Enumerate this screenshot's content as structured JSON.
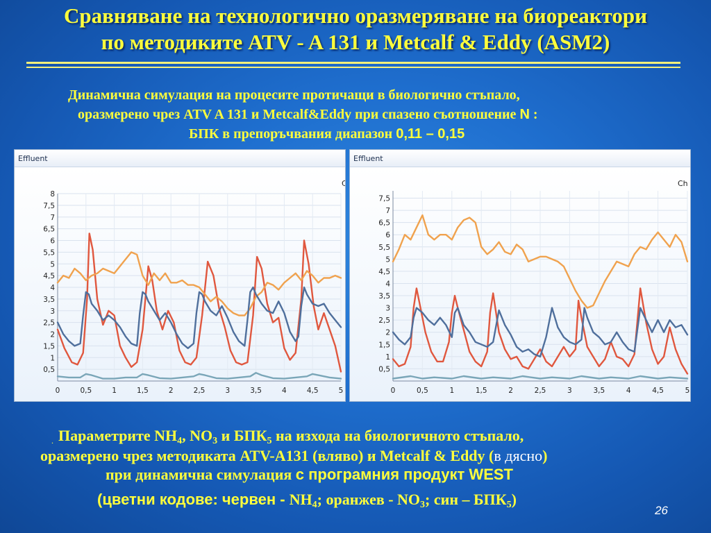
{
  "slide": {
    "title_line1": "Сравняване на технологично оразмеряване на биореактори",
    "title_line2": "по методиките ATV - A 131 и Metcalf & Eddy (ASM2)",
    "subtitle_line1": "Динамична симулация на процесите протичащи в биологично стъпало,",
    "subtitle_line2_pre": "оразмерено чрез ATV A 131 и Metcalf&Eddy при спазено съотношение ",
    "subtitle_line2_N": "N",
    "subtitle_line2_post": " :",
    "subtitle_line3_pre": "БПК в препоръчвания диапазон ",
    "subtitle_line3_range": "0,11 – 0,15",
    "page_number": "26"
  },
  "panels": {
    "left_header": "Effluent",
    "right_header": "Effluent",
    "right_corner_label": "Ch",
    "left_corner_label": "C"
  },
  "bottom": {
    "bullet": ".",
    "l1_a": "Параметрите NH",
    "l1_sub1": "4",
    "l1_b": ", NO",
    "l1_sub2": "3",
    "l1_c": " и БПК",
    "l1_sub3": "5",
    "l1_d": " на изхода на биологичното стъпало,",
    "l2_a": "оразмерено чрез методиката ATV-A131 (вляво) и Metcalf & Eddy (",
    "l2_b": "в дясно",
    "l2_c": ")",
    "l3_a": "при динамична симулация ",
    "l3_b": "с програмния продукт WEST",
    "l4_a": "(цветни кодове: червен - ",
    "l4_b": "NH",
    "l4_sub1": "4",
    "l4_c": "; оранжев - NO",
    "l4_sub2": "3",
    "l4_d": "; син – БПК",
    "l4_sub3": "5",
    "l4_e": ")"
  },
  "colors": {
    "red": "#e0573e",
    "orange": "#f0a24e",
    "blue": "#4f6f9c",
    "teal": "#7aa6b8",
    "title": "#ffff3c"
  },
  "chart_data": [
    {
      "type": "line",
      "title": "Effluent",
      "xlabel": "",
      "ylabel": "",
      "xlim": [
        0,
        5
      ],
      "ylim": [
        0,
        8
      ],
      "x_ticks": [
        "0",
        "0,5",
        "1",
        "1,5",
        "2",
        "2,5",
        "3",
        "3,5",
        "4",
        "4,5",
        "5"
      ],
      "y_ticks": [
        "0,5",
        "1",
        "1,5",
        "2",
        "2,5",
        "3",
        "3,5",
        "4",
        "4,5",
        "5",
        "5,5",
        "6",
        "6,5",
        "7",
        "7,5",
        "8"
      ],
      "grid": true,
      "series": [
        {
          "color": "red",
          "x": [
            0,
            0.12,
            0.25,
            0.35,
            0.45,
            0.52,
            0.56,
            0.62,
            0.7,
            0.8,
            0.9,
            1.0,
            1.1,
            1.2,
            1.3,
            1.4,
            1.5,
            1.6,
            1.67,
            1.75,
            1.85,
            1.95,
            2.05,
            2.15,
            2.25,
            2.35,
            2.45,
            2.55,
            2.65,
            2.75,
            2.85,
            2.95,
            3.05,
            3.15,
            3.25,
            3.35,
            3.45,
            3.52,
            3.6,
            3.7,
            3.8,
            3.9,
            4.0,
            4.1,
            4.2,
            4.3,
            4.35,
            4.43,
            4.52,
            4.6,
            4.7,
            4.8,
            4.9,
            5.0
          ],
          "y": [
            2.2,
            1.4,
            0.8,
            0.7,
            1.2,
            3.5,
            6.3,
            5.6,
            3.5,
            2.4,
            3.0,
            2.8,
            1.5,
            1.0,
            0.6,
            0.8,
            2.2,
            4.9,
            4.3,
            3.0,
            2.2,
            3.0,
            2.5,
            1.3,
            0.8,
            0.7,
            1.0,
            2.8,
            5.1,
            4.5,
            3.1,
            2.3,
            1.3,
            0.8,
            0.7,
            0.8,
            2.8,
            5.3,
            4.8,
            3.3,
            2.5,
            2.7,
            1.4,
            0.9,
            1.2,
            3.5,
            6.0,
            5.0,
            3.2,
            2.2,
            2.9,
            2.2,
            1.5,
            0.4
          ]
        },
        {
          "color": "orange",
          "x": [
            0,
            0.1,
            0.2,
            0.3,
            0.4,
            0.5,
            0.6,
            0.7,
            0.8,
            0.9,
            1.0,
            1.1,
            1.2,
            1.3,
            1.4,
            1.5,
            1.6,
            1.7,
            1.8,
            1.9,
            2.0,
            2.1,
            2.2,
            2.3,
            2.4,
            2.5,
            2.6,
            2.7,
            2.8,
            2.9,
            3.0,
            3.1,
            3.2,
            3.3,
            3.4,
            3.5,
            3.6,
            3.7,
            3.8,
            3.9,
            4.0,
            4.1,
            4.2,
            4.3,
            4.4,
            4.5,
            4.6,
            4.7,
            4.8,
            4.9,
            5.0
          ],
          "y": [
            4.2,
            4.5,
            4.4,
            4.8,
            4.6,
            4.3,
            4.5,
            4.6,
            4.8,
            4.7,
            4.6,
            4.9,
            5.2,
            5.5,
            5.4,
            4.5,
            4.1,
            4.6,
            4.3,
            4.6,
            4.2,
            4.2,
            4.3,
            4.1,
            4.1,
            4.0,
            3.7,
            3.4,
            3.6,
            3.4,
            3.1,
            2.9,
            2.8,
            2.8,
            3.1,
            3.6,
            3.8,
            4.2,
            4.1,
            3.9,
            4.2,
            4.4,
            4.6,
            4.3,
            4.7,
            4.5,
            4.2,
            4.4,
            4.4,
            4.5,
            4.4
          ]
        },
        {
          "color": "blue",
          "x": [
            0,
            0.1,
            0.2,
            0.3,
            0.4,
            0.45,
            0.5,
            0.55,
            0.6,
            0.7,
            0.8,
            0.9,
            1.0,
            1.1,
            1.2,
            1.3,
            1.4,
            1.45,
            1.5,
            1.55,
            1.6,
            1.7,
            1.8,
            1.9,
            2.0,
            2.1,
            2.2,
            2.3,
            2.4,
            2.45,
            2.5,
            2.55,
            2.6,
            2.7,
            2.8,
            2.9,
            3.0,
            3.1,
            3.2,
            3.3,
            3.35,
            3.4,
            3.45,
            3.5,
            3.6,
            3.7,
            3.8,
            3.9,
            4.0,
            4.1,
            4.2,
            4.25,
            4.3,
            4.35,
            4.4,
            4.5,
            4.6,
            4.7,
            4.8,
            4.9,
            5.0
          ],
          "y": [
            2.5,
            2.0,
            1.7,
            1.5,
            1.6,
            2.8,
            3.8,
            3.7,
            3.3,
            3.0,
            2.6,
            2.8,
            2.6,
            2.3,
            1.9,
            1.6,
            1.5,
            2.9,
            3.8,
            3.7,
            3.4,
            3.0,
            2.6,
            2.9,
            2.5,
            2.0,
            1.6,
            1.4,
            1.6,
            2.9,
            3.8,
            3.7,
            3.4,
            3.0,
            2.8,
            3.2,
            2.7,
            2.1,
            1.7,
            1.5,
            2.6,
            3.8,
            4.0,
            3.7,
            3.3,
            3.0,
            2.9,
            3.4,
            2.9,
            2.1,
            1.7,
            1.9,
            3.2,
            4.0,
            3.7,
            3.3,
            3.2,
            3.3,
            2.9,
            2.6,
            2.3
          ]
        },
        {
          "color": "teal",
          "x": [
            0,
            0.2,
            0.4,
            0.5,
            0.6,
            0.8,
            1.0,
            1.2,
            1.4,
            1.5,
            1.6,
            1.8,
            2.0,
            2.2,
            2.4,
            2.5,
            2.6,
            2.8,
            3.0,
            3.2,
            3.4,
            3.5,
            3.6,
            3.8,
            4.0,
            4.2,
            4.4,
            4.5,
            4.6,
            4.8,
            5.0
          ],
          "y": [
            0.2,
            0.15,
            0.15,
            0.3,
            0.25,
            0.1,
            0.1,
            0.15,
            0.15,
            0.3,
            0.25,
            0.12,
            0.1,
            0.15,
            0.2,
            0.3,
            0.25,
            0.12,
            0.1,
            0.15,
            0.2,
            0.35,
            0.25,
            0.12,
            0.1,
            0.15,
            0.2,
            0.3,
            0.25,
            0.15,
            0.1
          ]
        }
      ]
    },
    {
      "type": "line",
      "title": "Effluent",
      "xlabel": "",
      "ylabel": "",
      "xlim": [
        0,
        5
      ],
      "ylim": [
        0,
        7.8
      ],
      "x_ticks": [
        "0",
        "0,5",
        "1",
        "1,5",
        "2",
        "2,5",
        "3",
        "3,5",
        "4",
        "4,5",
        "5"
      ],
      "y_ticks": [
        "0,5",
        "1",
        "1,5",
        "2",
        "2,5",
        "3",
        "3,5",
        "4",
        "4,5",
        "5",
        "5,5",
        "6",
        "6,5",
        "7",
        "7,5"
      ],
      "grid": true,
      "series": [
        {
          "color": "red",
          "x": [
            0,
            0.1,
            0.2,
            0.3,
            0.35,
            0.4,
            0.45,
            0.55,
            0.65,
            0.75,
            0.85,
            0.95,
            1.0,
            1.05,
            1.1,
            1.2,
            1.3,
            1.4,
            1.5,
            1.6,
            1.65,
            1.7,
            1.8,
            1.9,
            2.0,
            2.1,
            2.2,
            2.3,
            2.4,
            2.5,
            2.6,
            2.7,
            2.8,
            2.9,
            3.0,
            3.1,
            3.15,
            3.2,
            3.3,
            3.4,
            3.5,
            3.6,
            3.7,
            3.8,
            3.9,
            4.0,
            4.1,
            4.2,
            4.3,
            4.4,
            4.5,
            4.6,
            4.7,
            4.8,
            4.9,
            5.0
          ],
          "y": [
            0.9,
            0.6,
            0.7,
            1.4,
            3.0,
            3.8,
            3.2,
            2.0,
            1.2,
            0.8,
            0.8,
            1.6,
            2.8,
            3.5,
            3.0,
            2.1,
            1.2,
            0.8,
            0.6,
            1.2,
            2.8,
            3.6,
            2.0,
            1.3,
            0.9,
            1.0,
            0.6,
            0.5,
            0.9,
            1.3,
            0.8,
            0.6,
            1.0,
            1.4,
            1.0,
            1.3,
            3.3,
            2.6,
            1.4,
            1.0,
            0.6,
            0.9,
            1.6,
            1.0,
            0.9,
            0.6,
            1.1,
            3.8,
            2.4,
            1.3,
            0.7,
            1.0,
            2.2,
            1.3,
            0.7,
            0.3
          ]
        },
        {
          "color": "orange",
          "x": [
            0,
            0.1,
            0.2,
            0.3,
            0.4,
            0.5,
            0.6,
            0.7,
            0.8,
            0.9,
            1.0,
            1.1,
            1.2,
            1.3,
            1.4,
            1.5,
            1.6,
            1.7,
            1.8,
            1.9,
            2.0,
            2.1,
            2.2,
            2.3,
            2.4,
            2.5,
            2.6,
            2.7,
            2.8,
            2.9,
            3.0,
            3.1,
            3.2,
            3.3,
            3.4,
            3.5,
            3.6,
            3.7,
            3.8,
            3.9,
            4.0,
            4.1,
            4.2,
            4.3,
            4.4,
            4.5,
            4.6,
            4.7,
            4.8,
            4.9,
            5.0
          ],
          "y": [
            4.9,
            5.4,
            6.0,
            5.8,
            6.3,
            6.8,
            6.0,
            5.8,
            6.0,
            6.0,
            5.8,
            6.3,
            6.6,
            6.7,
            6.5,
            5.5,
            5.2,
            5.4,
            5.7,
            5.3,
            5.2,
            5.6,
            5.4,
            4.9,
            5.0,
            5.1,
            5.1,
            5.0,
            4.9,
            4.7,
            4.2,
            3.7,
            3.3,
            3.0,
            3.1,
            3.6,
            4.1,
            4.5,
            4.9,
            4.8,
            4.7,
            5.2,
            5.5,
            5.4,
            5.8,
            6.1,
            5.8,
            5.5,
            6.0,
            5.7,
            4.9
          ]
        },
        {
          "color": "blue",
          "x": [
            0,
            0.1,
            0.2,
            0.3,
            0.35,
            0.4,
            0.5,
            0.6,
            0.7,
            0.8,
            0.9,
            1.0,
            1.05,
            1.1,
            1.2,
            1.3,
            1.4,
            1.5,
            1.6,
            1.7,
            1.8,
            1.9,
            2.0,
            2.1,
            2.2,
            2.3,
            2.4,
            2.5,
            2.6,
            2.7,
            2.75,
            2.8,
            2.9,
            3.0,
            3.1,
            3.2,
            3.25,
            3.3,
            3.4,
            3.5,
            3.6,
            3.7,
            3.8,
            3.9,
            4.0,
            4.1,
            4.2,
            4.3,
            4.4,
            4.5,
            4.6,
            4.7,
            4.8,
            4.9,
            5.0
          ],
          "y": [
            2.0,
            1.7,
            1.5,
            1.8,
            2.6,
            3.0,
            2.8,
            2.5,
            2.3,
            2.6,
            2.3,
            1.8,
            2.8,
            3.0,
            2.3,
            2.0,
            1.6,
            1.5,
            1.4,
            1.6,
            2.9,
            2.3,
            1.9,
            1.4,
            1.2,
            1.3,
            1.1,
            1.0,
            1.8,
            3.0,
            2.6,
            2.2,
            1.8,
            1.6,
            1.5,
            1.7,
            3.0,
            2.6,
            2.0,
            1.8,
            1.5,
            1.6,
            2.0,
            1.6,
            1.3,
            1.2,
            3.0,
            2.5,
            2.0,
            2.5,
            2.0,
            2.5,
            2.2,
            2.3,
            1.9
          ]
        },
        {
          "color": "teal",
          "x": [
            0,
            0.3,
            0.5,
            0.7,
            1.0,
            1.2,
            1.5,
            1.7,
            2.0,
            2.2,
            2.5,
            2.7,
            3.0,
            3.2,
            3.5,
            3.7,
            4.0,
            4.2,
            4.5,
            4.7,
            5.0
          ],
          "y": [
            0.1,
            0.2,
            0.1,
            0.15,
            0.1,
            0.2,
            0.1,
            0.15,
            0.1,
            0.2,
            0.1,
            0.15,
            0.1,
            0.2,
            0.1,
            0.15,
            0.1,
            0.2,
            0.1,
            0.15,
            0.1
          ]
        }
      ]
    }
  ]
}
